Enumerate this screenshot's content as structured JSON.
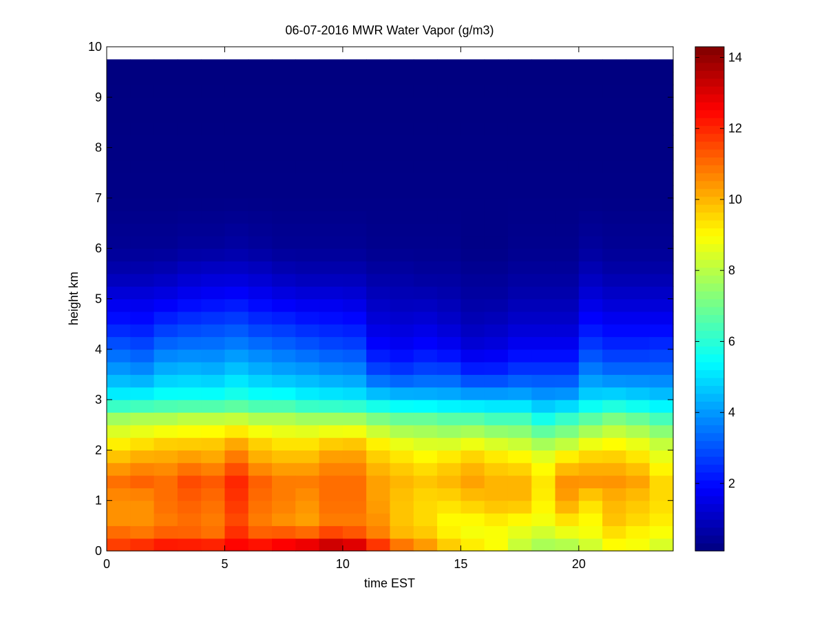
{
  "chart_data": {
    "type": "heatmap",
    "title": "06-07-2016 MWR Water Vapor (g/m3)",
    "xlabel": "time EST",
    "ylabel": "height km",
    "xlim": [
      0,
      24
    ],
    "ylim": [
      0,
      10
    ],
    "x_ticks": [
      0,
      5,
      10,
      15,
      20
    ],
    "y_ticks": [
      0,
      1,
      2,
      3,
      4,
      5,
      6,
      7,
      8,
      9,
      10
    ],
    "colorbar": {
      "colormap": "jet",
      "range": [
        0.1,
        14.3
      ],
      "ticks": [
        2,
        4,
        6,
        8,
        10,
        12,
        14
      ]
    },
    "x_hours": [
      0.5,
      1.5,
      2.5,
      3.5,
      4.5,
      5.5,
      6.5,
      7.5,
      8.5,
      9.5,
      10.5,
      11.5,
      12.5,
      13.5,
      14.5,
      15.5,
      16.5,
      17.5,
      18.5,
      19.5,
      20.5,
      21.5,
      22.5,
      23.5
    ],
    "height_km_max": 9.75,
    "profiles": {
      "heights_km": [
        0,
        0.3,
        0.6,
        1.0,
        1.4,
        1.8,
        2.2,
        2.6,
        3.0,
        3.5,
        4.0,
        4.5,
        5.0,
        5.5,
        6.0,
        7.0,
        9.75
      ],
      "values_g_m3": [
        [
          12.0,
          11.2,
          10.5,
          10.5,
          11.0,
          10.0,
          9.0,
          7.8,
          5.5,
          4.2,
          3.2,
          2.2,
          1.5,
          0.8,
          0.4,
          0.2,
          0.1
        ],
        [
          12.5,
          11.0,
          10.5,
          10.5,
          11.2,
          10.3,
          9.2,
          8.0,
          5.6,
          4.0,
          3.0,
          2.1,
          1.5,
          0.8,
          0.4,
          0.2,
          0.1
        ],
        [
          12.8,
          11.3,
          10.8,
          11.0,
          11.0,
          10.3,
          9.5,
          8.0,
          5.8,
          4.5,
          3.5,
          2.5,
          1.6,
          0.9,
          0.4,
          0.2,
          0.1
        ],
        [
          12.8,
          11.2,
          11.0,
          11.2,
          11.5,
          10.5,
          9.5,
          8.2,
          5.8,
          4.6,
          3.6,
          2.7,
          1.8,
          1.1,
          0.5,
          0.2,
          0.1
        ],
        [
          12.8,
          11.0,
          10.8,
          11.0,
          11.3,
          10.3,
          9.6,
          8.2,
          5.8,
          4.5,
          3.6,
          2.8,
          1.9,
          1.2,
          0.5,
          0.2,
          0.1
        ],
        [
          12.8,
          12.0,
          11.5,
          11.8,
          12.0,
          11.0,
          10.0,
          8.3,
          6.0,
          4.8,
          3.8,
          2.9,
          2.0,
          1.2,
          0.6,
          0.2,
          0.1
        ],
        [
          13.0,
          11.3,
          10.8,
          11.0,
          11.2,
          10.2,
          9.5,
          8.0,
          5.8,
          4.5,
          3.6,
          2.6,
          1.8,
          1.1,
          0.5,
          0.2,
          0.1
        ],
        [
          13.3,
          11.5,
          10.5,
          10.8,
          10.8,
          10.0,
          9.2,
          8.0,
          5.8,
          4.3,
          3.4,
          2.5,
          1.6,
          0.9,
          0.4,
          0.2,
          0.1
        ],
        [
          13.8,
          11.3,
          10.3,
          10.5,
          10.8,
          10.0,
          9.2,
          7.8,
          5.5,
          4.2,
          3.2,
          2.3,
          1.5,
          0.8,
          0.4,
          0.2,
          0.1
        ],
        [
          14.2,
          11.8,
          10.8,
          11.0,
          11.0,
          10.5,
          9.5,
          7.8,
          5.4,
          4.0,
          3.0,
          2.2,
          1.5,
          0.8,
          0.4,
          0.2,
          0.1
        ],
        [
          14.0,
          11.5,
          10.8,
          11.0,
          11.0,
          10.5,
          9.6,
          7.8,
          5.3,
          3.9,
          2.9,
          2.1,
          1.4,
          0.8,
          0.4,
          0.2,
          0.1
        ],
        [
          12.5,
          10.8,
          10.5,
          10.3,
          10.3,
          9.8,
          9.0,
          7.3,
          5.0,
          3.0,
          2.0,
          1.4,
          1.0,
          0.6,
          0.3,
          0.2,
          0.1
        ],
        [
          11.5,
          10.0,
          9.8,
          9.8,
          10.0,
          9.5,
          8.5,
          7.0,
          4.8,
          2.8,
          1.8,
          1.3,
          0.9,
          0.6,
          0.3,
          0.2,
          0.1
        ],
        [
          10.8,
          9.8,
          9.5,
          9.5,
          9.8,
          9.2,
          8.3,
          7.0,
          4.7,
          3.0,
          2.0,
          1.4,
          0.9,
          0.5,
          0.3,
          0.2,
          0.1
        ],
        [
          10.0,
          9.2,
          9.0,
          9.5,
          10.0,
          9.5,
          8.2,
          6.8,
          4.6,
          3.0,
          1.8,
          1.2,
          0.8,
          0.5,
          0.3,
          0.2,
          0.1
        ],
        [
          9.5,
          8.8,
          9.0,
          9.8,
          10.3,
          9.8,
          8.5,
          6.8,
          4.5,
          2.5,
          1.4,
          0.9,
          0.6,
          0.4,
          0.2,
          0.2,
          0.1
        ],
        [
          9.0,
          8.8,
          9.2,
          10.0,
          10.0,
          9.5,
          8.2,
          6.5,
          4.5,
          2.5,
          1.5,
          1.0,
          0.6,
          0.4,
          0.2,
          0.2,
          0.1
        ],
        [
          8.0,
          8.5,
          9.0,
          10.0,
          10.0,
          9.3,
          8.0,
          6.5,
          4.5,
          2.8,
          1.8,
          1.2,
          0.8,
          0.5,
          0.3,
          0.2,
          0.1
        ],
        [
          7.5,
          8.2,
          8.8,
          9.2,
          9.3,
          8.8,
          7.5,
          5.8,
          4.2,
          2.8,
          1.8,
          1.2,
          0.8,
          0.5,
          0.3,
          0.2,
          0.1
        ],
        [
          7.5,
          8.5,
          9.3,
          10.3,
          10.5,
          9.5,
          7.8,
          6.3,
          4.3,
          2.8,
          1.8,
          1.2,
          0.8,
          0.5,
          0.3,
          0.2,
          0.1
        ],
        [
          8.0,
          8.8,
          9.0,
          9.5,
          10.5,
          9.8,
          8.5,
          6.8,
          5.0,
          3.8,
          2.8,
          2.0,
          1.4,
          0.9,
          0.5,
          0.2,
          0.1
        ],
        [
          8.8,
          9.3,
          9.8,
          10.0,
          10.5,
          9.8,
          8.8,
          7.3,
          5.2,
          3.5,
          2.5,
          1.8,
          1.2,
          0.7,
          0.4,
          0.2,
          0.1
        ],
        [
          8.8,
          9.0,
          9.5,
          9.8,
          10.3,
          9.5,
          8.5,
          7.0,
          5.0,
          3.5,
          2.5,
          1.8,
          1.2,
          0.7,
          0.4,
          0.2,
          0.1
        ],
        [
          8.2,
          8.8,
          9.2,
          9.5,
          9.5,
          8.8,
          8.0,
          6.5,
          4.8,
          3.5,
          2.6,
          1.8,
          1.2,
          0.7,
          0.4,
          0.2,
          0.1
        ]
      ]
    }
  }
}
